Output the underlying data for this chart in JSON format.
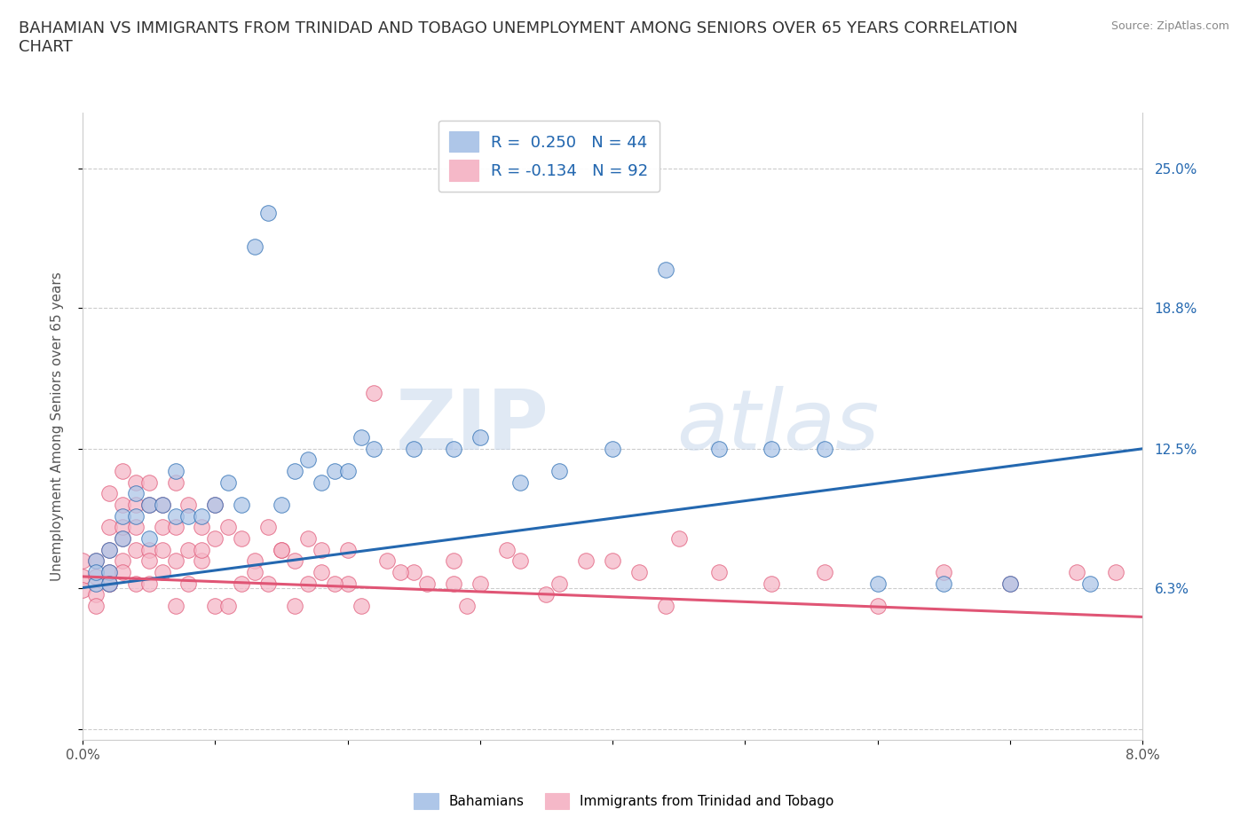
{
  "title": "BAHAMIAN VS IMMIGRANTS FROM TRINIDAD AND TOBAGO UNEMPLOYMENT AMONG SENIORS OVER 65 YEARS CORRELATION\nCHART",
  "source_text": "Source: ZipAtlas.com",
  "ylabel": "Unemployment Among Seniors over 65 years",
  "xlim": [
    0.0,
    0.08
  ],
  "ylim": [
    -0.005,
    0.275
  ],
  "xtick_vals": [
    0.0,
    0.01,
    0.02,
    0.03,
    0.04,
    0.05,
    0.06,
    0.07,
    0.08
  ],
  "xtick_labels": [
    "0.0%",
    "",
    "",
    "",
    "",
    "",
    "",
    "",
    "8.0%"
  ],
  "ytick_vals": [
    0.0,
    0.063,
    0.125,
    0.188,
    0.25
  ],
  "ytick_labels": [
    "",
    "6.3%",
    "12.5%",
    "18.8%",
    "25.0%"
  ],
  "blue_color": "#aec6e8",
  "pink_color": "#f5b8c8",
  "blue_line_color": "#2468b0",
  "pink_line_color": "#e05575",
  "legend_blue_label": "R =  0.250   N = 44",
  "legend_pink_label": "R = -0.134   N = 92",
  "legend1_label": "Bahamians",
  "legend2_label": "Immigrants from Trinidad and Tobago",
  "watermark_zip": "ZIP",
  "watermark_atlas": "atlas",
  "blue_trend_x": [
    0.0,
    0.08
  ],
  "blue_trend_y": [
    0.063,
    0.125
  ],
  "pink_trend_x": [
    0.0,
    0.08
  ],
  "pink_trend_y": [
    0.068,
    0.05
  ],
  "background_color": "#ffffff",
  "grid_color": "#cccccc",
  "title_fontsize": 13,
  "axis_label_fontsize": 11,
  "tick_fontsize": 11,
  "blue_scatter_x": [
    0.001,
    0.001,
    0.001,
    0.002,
    0.002,
    0.002,
    0.003,
    0.003,
    0.004,
    0.004,
    0.005,
    0.005,
    0.006,
    0.007,
    0.007,
    0.008,
    0.009,
    0.01,
    0.011,
    0.012,
    0.013,
    0.014,
    0.015,
    0.016,
    0.017,
    0.018,
    0.019,
    0.02,
    0.021,
    0.022,
    0.025,
    0.028,
    0.03,
    0.033,
    0.036,
    0.04,
    0.044,
    0.048,
    0.052,
    0.056,
    0.06,
    0.065,
    0.07,
    0.076
  ],
  "blue_scatter_y": [
    0.075,
    0.065,
    0.07,
    0.08,
    0.07,
    0.065,
    0.095,
    0.085,
    0.105,
    0.095,
    0.1,
    0.085,
    0.1,
    0.115,
    0.095,
    0.095,
    0.095,
    0.1,
    0.11,
    0.1,
    0.215,
    0.23,
    0.1,
    0.115,
    0.12,
    0.11,
    0.115,
    0.115,
    0.13,
    0.125,
    0.125,
    0.125,
    0.13,
    0.11,
    0.115,
    0.125,
    0.205,
    0.125,
    0.125,
    0.125,
    0.065,
    0.065,
    0.065,
    0.065
  ],
  "pink_scatter_x": [
    0.0,
    0.0,
    0.0,
    0.001,
    0.001,
    0.001,
    0.001,
    0.002,
    0.002,
    0.002,
    0.002,
    0.002,
    0.003,
    0.003,
    0.003,
    0.003,
    0.003,
    0.004,
    0.004,
    0.004,
    0.004,
    0.005,
    0.005,
    0.005,
    0.005,
    0.006,
    0.006,
    0.006,
    0.007,
    0.007,
    0.007,
    0.008,
    0.008,
    0.009,
    0.009,
    0.01,
    0.01,
    0.011,
    0.012,
    0.013,
    0.014,
    0.015,
    0.016,
    0.017,
    0.018,
    0.02,
    0.022,
    0.025,
    0.028,
    0.03,
    0.033,
    0.036,
    0.04,
    0.044,
    0.048,
    0.052,
    0.056,
    0.06,
    0.065,
    0.07,
    0.075,
    0.078,
    0.032,
    0.035,
    0.038,
    0.042,
    0.045,
    0.02,
    0.024,
    0.028,
    0.002,
    0.003,
    0.004,
    0.005,
    0.006,
    0.007,
    0.008,
    0.009,
    0.01,
    0.011,
    0.012,
    0.013,
    0.014,
    0.015,
    0.016,
    0.017,
    0.018,
    0.019,
    0.021,
    0.023,
    0.026,
    0.029
  ],
  "pink_scatter_y": [
    0.068,
    0.062,
    0.075,
    0.075,
    0.068,
    0.06,
    0.055,
    0.09,
    0.07,
    0.105,
    0.065,
    0.08,
    0.1,
    0.085,
    0.075,
    0.09,
    0.115,
    0.1,
    0.08,
    0.11,
    0.09,
    0.1,
    0.08,
    0.075,
    0.11,
    0.09,
    0.1,
    0.08,
    0.09,
    0.075,
    0.11,
    0.1,
    0.08,
    0.09,
    0.075,
    0.085,
    0.1,
    0.09,
    0.085,
    0.075,
    0.09,
    0.08,
    0.075,
    0.085,
    0.08,
    0.08,
    0.15,
    0.07,
    0.075,
    0.065,
    0.075,
    0.065,
    0.075,
    0.055,
    0.07,
    0.065,
    0.07,
    0.055,
    0.07,
    0.065,
    0.07,
    0.07,
    0.08,
    0.06,
    0.075,
    0.07,
    0.085,
    0.065,
    0.07,
    0.065,
    0.065,
    0.07,
    0.065,
    0.065,
    0.07,
    0.055,
    0.065,
    0.08,
    0.055,
    0.055,
    0.065,
    0.07,
    0.065,
    0.08,
    0.055,
    0.065,
    0.07,
    0.065,
    0.055,
    0.075,
    0.065,
    0.055
  ]
}
